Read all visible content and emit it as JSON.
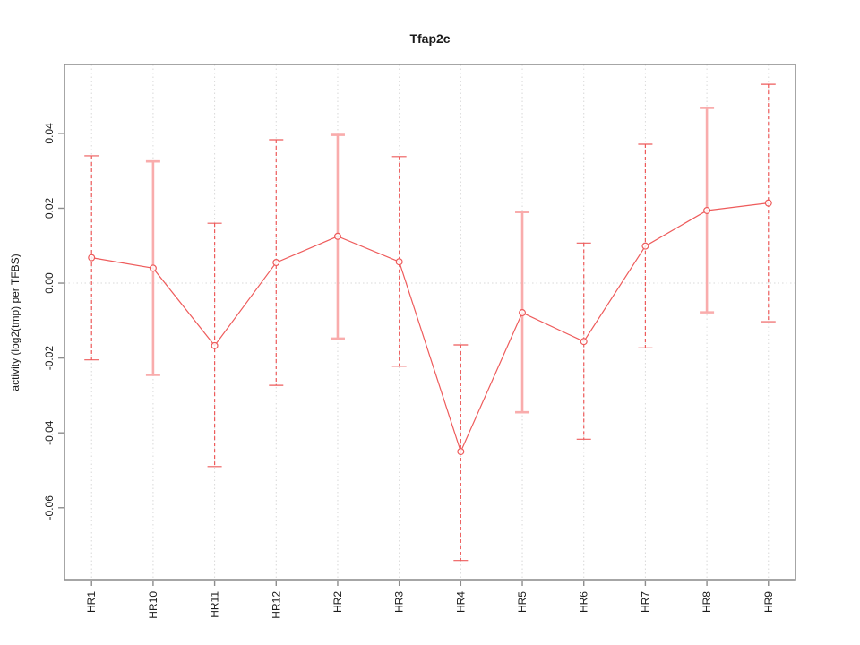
{
  "window": {
    "background": "#ffffff"
  },
  "chart_data": {
    "type": "line",
    "title": "Tfap2c",
    "xlabel": "",
    "ylabel": "activity (log2(tmp) per TFBS)",
    "legend_position": "none",
    "categories": [
      "HR1",
      "HR10",
      "HR11",
      "HR12",
      "HR2",
      "HR3",
      "HR4",
      "HR5",
      "HR6",
      "HR7",
      "HR8",
      "HR9"
    ],
    "series": [
      {
        "name": "activity",
        "values": [
          0.0068,
          0.004,
          -0.0167,
          0.0055,
          0.0125,
          0.0057,
          -0.045,
          -0.0079,
          -0.0156,
          0.0099,
          0.0194,
          0.0214
        ]
      }
    ],
    "error_bars": {
      "lower": [
        -0.0205,
        -0.0245,
        -0.049,
        -0.0273,
        -0.0148,
        -0.0222,
        -0.0741,
        -0.0345,
        -0.0417,
        -0.0173,
        -0.0078,
        -0.0103
      ],
      "upper": [
        0.034,
        0.0325,
        0.016,
        0.0383,
        0.0396,
        0.0338,
        -0.0165,
        0.019,
        0.0107,
        0.0371,
        0.0468,
        0.0531
      ],
      "styles": [
        "dashed",
        "solid",
        "dashed",
        "dashed",
        "solid",
        "dashed",
        "dashed",
        "solid",
        "dashed",
        "dashed",
        "solid",
        "dashed"
      ]
    },
    "yticks": {
      "values": [
        -0.06,
        -0.04,
        -0.02,
        0.0,
        0.02,
        0.04
      ],
      "labels": [
        "-0.06",
        "-0.04",
        "-0.02",
        "0.00",
        "0.02",
        "0.04"
      ]
    },
    "ylim": [
      -0.0792,
      0.0584
    ],
    "xlim_units": [
      0.56,
      12.44
    ],
    "grid": {
      "vertical_dotted_per_category": true,
      "horizontal_zero_line_dotted": true
    },
    "marker": "open-circle",
    "colors": {
      "line": "#ee5b5b",
      "marker": "#ee5b5b",
      "error_dashed": "#ee5b5b",
      "error_solid": "#f9acac",
      "grid": "#d8d8d8",
      "axis_box": "#909090",
      "tick": "#8c8c8c",
      "text": "#1a1a1a"
    }
  }
}
